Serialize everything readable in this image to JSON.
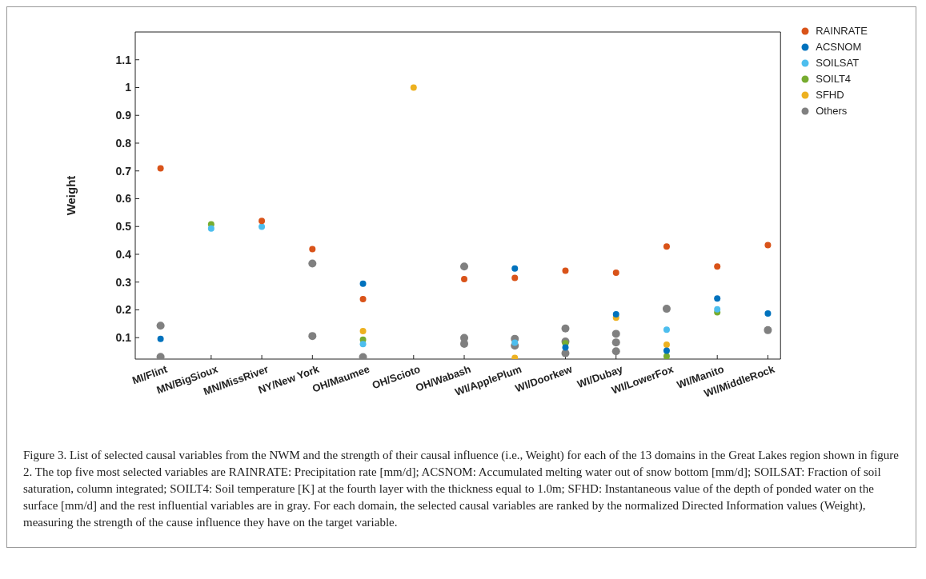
{
  "chart_data": {
    "type": "scatter",
    "ylabel": "Weight",
    "categories": [
      "MI/Flint",
      "MN/BigSioux",
      "MN/MissRiver",
      "NY/New York",
      "OH/Maumee",
      "OH/Scioto",
      "OH/Wabash",
      "WI/ApplePlum",
      "WI/Doorkew",
      "WI/Dubay",
      "WI/LowerFox",
      "WI/Manito",
      "WI/MiddleRock"
    ],
    "series": [
      {
        "name": "RAINRATE",
        "color": "#d95319",
        "x": [
          "MI/Flint",
          "MN/MissRiver",
          "NY/New York",
          "OH/Maumee",
          "OH/Wabash",
          "WI/ApplePlum",
          "WI/Doorkew",
          "WI/Dubay",
          "WI/LowerFox",
          "WI/Manito",
          "WI/MiddleRock"
        ],
        "values": [
          0.709,
          0.52,
          0.419,
          0.239,
          0.311,
          0.315,
          0.341,
          0.334,
          0.428,
          0.356,
          0.433
        ]
      },
      {
        "name": "ACSNOM",
        "color": "#0072bd",
        "x": [
          "MI/Flint",
          "OH/Maumee",
          "WI/ApplePlum",
          "WI/Doorkew",
          "WI/Dubay",
          "WI/LowerFox",
          "WI/Manito",
          "WI/MiddleRock"
        ],
        "values": [
          0.096,
          0.294,
          0.349,
          0.065,
          0.184,
          0.053,
          0.241,
          0.187
        ]
      },
      {
        "name": "SOILSAT",
        "color": "#4dbeee",
        "x": [
          "MN/BigSioux",
          "MN/MissRiver",
          "OH/Maumee",
          "WI/ApplePlum",
          "WI/LowerFox",
          "WI/Manito"
        ],
        "values": [
          0.493,
          0.499,
          0.077,
          0.082,
          0.129,
          0.202
        ]
      },
      {
        "name": "SOILT4",
        "color": "#77ac30",
        "x": [
          "MN/BigSioux",
          "OH/Maumee",
          "WI/Doorkew",
          "WI/LowerFox",
          "WI/Manito"
        ],
        "values": [
          0.508,
          0.093,
          0.08,
          0.033,
          0.191
        ]
      },
      {
        "name": "SFHD",
        "color": "#edb120",
        "x": [
          "OH/Maumee",
          "OH/Scioto",
          "WI/ApplePlum",
          "WI/Dubay",
          "WI/LowerFox"
        ],
        "values": [
          0.124,
          1.0,
          0.027,
          0.172,
          0.075
        ]
      },
      {
        "name": "Others",
        "color": "#808080",
        "x": [
          "MI/Flint",
          "MI/Flint",
          "NY/New York",
          "NY/New York",
          "OH/Maumee",
          "OH/Wabash",
          "OH/Wabash",
          "OH/Wabash",
          "WI/ApplePlum",
          "WI/ApplePlum",
          "WI/Doorkew",
          "WI/Doorkew",
          "WI/Doorkew",
          "WI/Dubay",
          "WI/Dubay",
          "WI/Dubay",
          "WI/LowerFox",
          "WI/MiddleRock"
        ],
        "values": [
          0.143,
          0.031,
          0.367,
          0.106,
          0.03,
          0.356,
          0.099,
          0.078,
          0.096,
          0.071,
          0.133,
          0.086,
          0.044,
          0.114,
          0.083,
          0.051,
          0.204,
          0.127
        ]
      }
    ],
    "ylim": [
      0.023,
      1.2
    ],
    "yticks": [
      0.1,
      0.2,
      0.3,
      0.4,
      0.5,
      0.6,
      0.7,
      0.8,
      0.9,
      1,
      1.1
    ],
    "grid": false,
    "legend": "top right",
    "marker": "circle",
    "annotations": [
      "Figure 3. List of selected causal variables from the NWM and the strength of their causal influence (i.e., Weight) for each of the 13 domains in the Great Lakes region shown in figure 2. The top five most selected variables are RAINRATE: Precipitation rate [mm/d]; ACSNOM: Accumulated melting water out of snow bottom [mm/d]; SOILSAT: Fraction of soil saturation, column integrated; SOILT4: Soil temperature [K] at the fourth layer with the thickness equal to 1.0m; SFHD: Instantaneous value of the depth of ponded water on the surface [mm/d] and the rest influential variables are in gray. For each domain, the selected causal variables are ranked by the normalized Directed Information values (Weight), measuring the strength of the cause influence they have on the target variable."
    ]
  }
}
